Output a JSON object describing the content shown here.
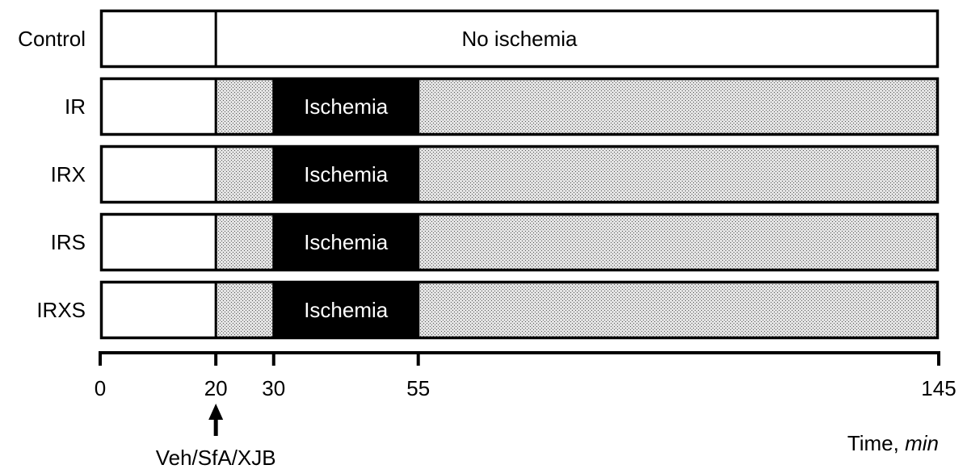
{
  "time_axis": {
    "min": 0,
    "max": 145,
    "ticks": [
      0,
      20,
      30,
      55,
      145
    ],
    "tick_labels": [
      "0",
      "20",
      "30",
      "55",
      "145"
    ],
    "label_prefix": "Time, ",
    "label_unit": "min"
  },
  "treatment_marker": {
    "time": 20,
    "label": "Veh/SfA/XJB"
  },
  "colors": {
    "outline": "#000000",
    "white": "#ffffff",
    "stippled": "#d4d4d4",
    "ischemia": "#000000"
  },
  "protocols": [
    {
      "name": "Control",
      "segments": [
        {
          "start": 0,
          "end": 20,
          "fill": "white",
          "text": ""
        },
        {
          "start": 20,
          "end": 145,
          "fill": "white",
          "text": "No ischemia"
        }
      ]
    },
    {
      "name": "IR",
      "segments": [
        {
          "start": 0,
          "end": 20,
          "fill": "white",
          "text": ""
        },
        {
          "start": 20,
          "end": 30,
          "fill": "stippled",
          "text": ""
        },
        {
          "start": 30,
          "end": 55,
          "fill": "ischemia",
          "text": "Ischemia"
        },
        {
          "start": 55,
          "end": 145,
          "fill": "stippled",
          "text": ""
        }
      ]
    },
    {
      "name": "IRX",
      "segments": [
        {
          "start": 0,
          "end": 20,
          "fill": "white",
          "text": ""
        },
        {
          "start": 20,
          "end": 30,
          "fill": "stippled",
          "text": ""
        },
        {
          "start": 30,
          "end": 55,
          "fill": "ischemia",
          "text": "Ischemia"
        },
        {
          "start": 55,
          "end": 145,
          "fill": "stippled",
          "text": ""
        }
      ]
    },
    {
      "name": "IRS",
      "segments": [
        {
          "start": 0,
          "end": 20,
          "fill": "white",
          "text": ""
        },
        {
          "start": 20,
          "end": 30,
          "fill": "stippled",
          "text": ""
        },
        {
          "start": 30,
          "end": 55,
          "fill": "ischemia",
          "text": "Ischemia"
        },
        {
          "start": 55,
          "end": 145,
          "fill": "stippled",
          "text": ""
        }
      ]
    },
    {
      "name": "IRXS",
      "segments": [
        {
          "start": 0,
          "end": 20,
          "fill": "white",
          "text": ""
        },
        {
          "start": 20,
          "end": 30,
          "fill": "stippled",
          "text": ""
        },
        {
          "start": 30,
          "end": 55,
          "fill": "ischemia",
          "text": "Ischemia"
        },
        {
          "start": 55,
          "end": 145,
          "fill": "stippled",
          "text": ""
        }
      ]
    }
  ]
}
